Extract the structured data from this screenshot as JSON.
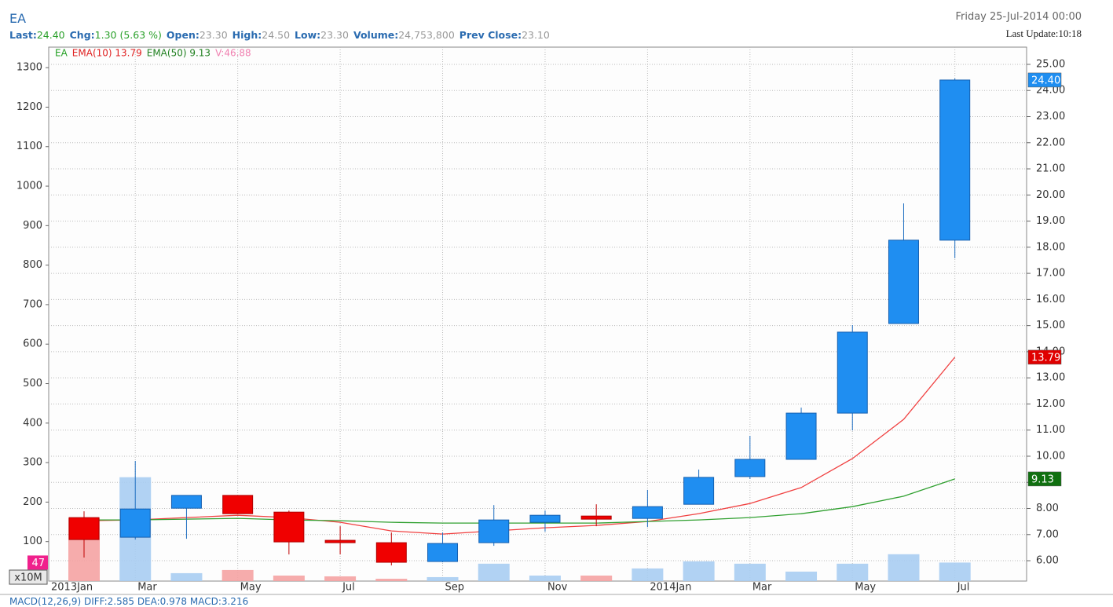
{
  "header": {
    "symbol": "EA",
    "date": "Friday 25-Jul-2014 00:00",
    "update": "Last Update:10:18",
    "stats": [
      {
        "label": "Last:",
        "value": "24.40"
      },
      {
        "label": "Chg:",
        "value": "1.30 (5.63 %)"
      },
      {
        "label": "Open:",
        "value": "23.30"
      },
      {
        "label": "High:",
        "value": "24.50"
      },
      {
        "label": "Low:",
        "value": "23.30"
      },
      {
        "label": "Volume:",
        "value": "24,753,800"
      },
      {
        "label": "Prev Close:",
        "value": "23.10"
      }
    ]
  },
  "chart_data": {
    "type": "candlestick",
    "legend": [
      {
        "text": "EA",
        "color": "#22a022"
      },
      {
        "text": "EMA(10) 13.79",
        "color": "#e02020"
      },
      {
        "text": "EMA(50) 9.13",
        "color": "#208020"
      },
      {
        "text": "V:46.88",
        "color": "#f080b0"
      }
    ],
    "x": [
      1,
      2,
      3,
      4,
      5,
      6,
      7,
      8,
      9,
      10,
      11,
      12,
      13,
      14,
      15,
      16,
      17,
      18
    ],
    "xlim": [
      0.31,
      19.4
    ],
    "xticks": [
      {
        "value": 0,
        "label": "2013Jan"
      },
      {
        "value": 2,
        "label": "Mar"
      },
      {
        "value": 4,
        "label": "May"
      },
      {
        "value": 6,
        "label": "Jul"
      },
      {
        "value": 8,
        "label": "Sep"
      },
      {
        "value": 10,
        "label": "Nov"
      },
      {
        "value": 12,
        "label": "2014Jan"
      },
      {
        "value": 14,
        "label": "Mar"
      },
      {
        "value": 16,
        "label": "May"
      },
      {
        "value": 18,
        "label": "Jul"
      }
    ],
    "ylim": [
      5.22,
      25.66
    ],
    "yticks": [
      {
        "value": 6,
        "label": "6.00"
      },
      {
        "value": 7,
        "label": "7.00"
      },
      {
        "value": 8,
        "label": "8.00"
      },
      {
        "value": 9,
        "label": "9.00"
      },
      {
        "value": 10,
        "label": "10.00"
      },
      {
        "value": 11,
        "label": "11.00"
      },
      {
        "value": 12,
        "label": "12.00"
      },
      {
        "value": 13,
        "label": "13.00"
      },
      {
        "value": 14,
        "label": "14.00"
      },
      {
        "value": 15,
        "label": "15.00"
      },
      {
        "value": 16,
        "label": "16.00"
      },
      {
        "value": 17,
        "label": "17.00"
      },
      {
        "value": 18,
        "label": "18.00"
      },
      {
        "value": 19,
        "label": "19.00"
      },
      {
        "value": 20,
        "label": "20.00"
      },
      {
        "value": 21,
        "label": "21.00"
      },
      {
        "value": 22,
        "label": "22.00"
      },
      {
        "value": 23,
        "label": "23.00"
      },
      {
        "value": 24,
        "label": "24.00"
      },
      {
        "value": 25,
        "label": "25.00"
      }
    ],
    "y2lim": [
      0,
      1352
    ],
    "y2ticks": [
      100,
      200,
      300,
      400,
      500,
      600,
      700,
      800,
      900,
      1000,
      1100,
      1200,
      1300
    ],
    "y2unit": "x10M",
    "open": [
      7.65,
      6.9,
      8.01,
      8.5,
      7.86,
      6.78,
      6.69,
      5.97,
      6.69,
      7.47,
      7.71,
      7.62,
      8.16,
      9.22,
      9.88,
      11.65,
      15.08,
      18.27
    ],
    "high": [
      7.89,
      9.82,
      8.5,
      8.5,
      7.92,
      7.32,
      7.08,
      7.08,
      8.13,
      7.92,
      8.16,
      8.71,
      9.49,
      10.78,
      11.86,
      15.02,
      19.68,
      24.46
    ],
    "low": [
      6.12,
      6.81,
      6.84,
      7.78,
      6.24,
      6.24,
      5.82,
      5.94,
      6.57,
      7.11,
      7.32,
      7.29,
      8.16,
      9.13,
      9.88,
      10.99,
      15.08,
      17.58
    ],
    "close": [
      6.81,
      7.98,
      8.5,
      7.8,
      6.72,
      6.69,
      5.94,
      6.66,
      7.56,
      7.74,
      7.59,
      8.07,
      9.19,
      9.88,
      11.65,
      14.75,
      18.27,
      24.4
    ],
    "up_color": "#1f8ef1",
    "down_color": "#f00000",
    "volume": {
      "values": [
        160,
        263,
        20,
        28,
        14,
        12,
        6,
        10,
        44,
        14,
        14,
        32,
        50,
        44,
        24,
        44,
        68,
        46.88
      ],
      "axis": "y2",
      "up_color": "#a8cdf2",
      "down_color": "#f5a3a3"
    },
    "series": [
      {
        "name": "EMA(10)",
        "color": "#f04040",
        "values": [
          7.53,
          7.56,
          7.65,
          7.74,
          7.65,
          7.47,
          7.14,
          7.02,
          7.14,
          7.26,
          7.35,
          7.5,
          7.8,
          8.19,
          8.8,
          9.91,
          11.41,
          13.79
        ]
      },
      {
        "name": "EMA(50)",
        "color": "#30a030",
        "values": [
          7.56,
          7.56,
          7.59,
          7.62,
          7.56,
          7.53,
          7.47,
          7.44,
          7.44,
          7.44,
          7.44,
          7.5,
          7.56,
          7.65,
          7.8,
          8.07,
          8.47,
          9.13
        ]
      }
    ],
    "markers": [
      {
        "value": 24.4,
        "label": "24.40",
        "color": "#1f8ef1"
      },
      {
        "value": 13.79,
        "label": "13.79",
        "color": "#e00000"
      },
      {
        "value": 9.13,
        "label": "9.13",
        "color": "#107010"
      }
    ],
    "volume_marker": {
      "value": 46.88,
      "label": "47",
      "color": "#f0208c"
    },
    "grid": true
  },
  "footer": "MACD(12,26,9) DIFF:2.585 DEA:0.978 MACD:3.216"
}
